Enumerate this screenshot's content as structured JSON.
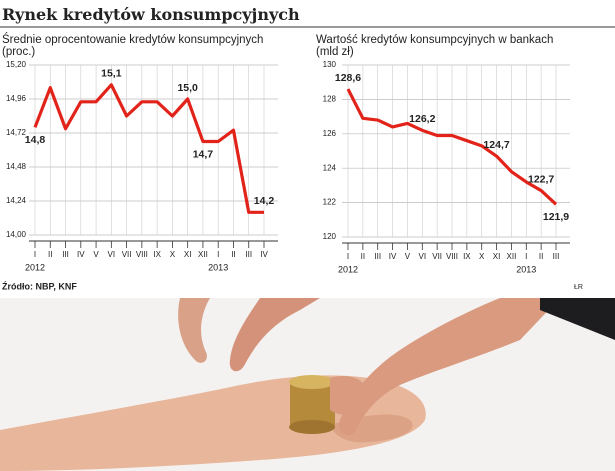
{
  "title": "Rynek kredytów konsumpcyjnych",
  "chart_data": [
    {
      "type": "line",
      "title": "Średnie oprocentowanie kredytów konsumpcyjnych (proc.)",
      "categories": [
        "I",
        "II",
        "III",
        "IV",
        "V",
        "VI",
        "VII",
        "VIII",
        "IX",
        "X",
        "XI",
        "XII",
        "I",
        "II",
        "III",
        "IV"
      ],
      "year_labels": [
        "2012",
        "2013"
      ],
      "series": [
        {
          "color": "#e2231a",
          "values": [
            14.76,
            15.04,
            14.75,
            14.94,
            14.94,
            15.06,
            14.84,
            14.94,
            14.94,
            14.84,
            14.96,
            14.66,
            14.66,
            14.74,
            14.16,
            14.16
          ],
          "value_labels": [
            "14,8",
            null,
            null,
            null,
            null,
            "15,1",
            null,
            null,
            null,
            null,
            "15,0",
            "14,7",
            null,
            null,
            null,
            "14,2"
          ]
        }
      ],
      "ylim": [
        14,
        15.2
      ],
      "yticks": [
        {
          "value": 14,
          "label": "14,00"
        },
        {
          "value": 14.24,
          "label": "14,24"
        },
        {
          "value": 14.48,
          "label": "14,48"
        },
        {
          "value": 14.72,
          "label": "14,72"
        },
        {
          "value": 14.96,
          "label": "14,96"
        },
        {
          "value": 15.2,
          "label": "15,20"
        }
      ],
      "grid": true
    },
    {
      "type": "line",
      "title": "Wartość kredytów konsumpcyjnych w bankach (mld zł)",
      "categories": [
        "I",
        "II",
        "III",
        "IV",
        "V",
        "VI",
        "VII",
        "VIII",
        "IX",
        "X",
        "XI",
        "XII",
        "I",
        "II",
        "III"
      ],
      "year_labels": [
        "2012",
        "2013"
      ],
      "series": [
        {
          "color": "#e2231a",
          "values": [
            128.6,
            126.9,
            126.8,
            126.4,
            126.6,
            126.2,
            125.9,
            125.9,
            125.6,
            125.3,
            124.7,
            123.8,
            123.2,
            122.7,
            121.9
          ],
          "value_labels": [
            "128,6",
            null,
            null,
            null,
            null,
            "126,2",
            null,
            null,
            null,
            null,
            "124,7",
            null,
            null,
            "122,7",
            "121,9"
          ]
        }
      ],
      "ylim": [
        120,
        130
      ],
      "yticks": [
        120,
        122,
        124,
        126,
        128,
        130
      ],
      "grid": true
    }
  ],
  "source": "Źródło: NBP, KNF",
  "credit": "ŁR"
}
